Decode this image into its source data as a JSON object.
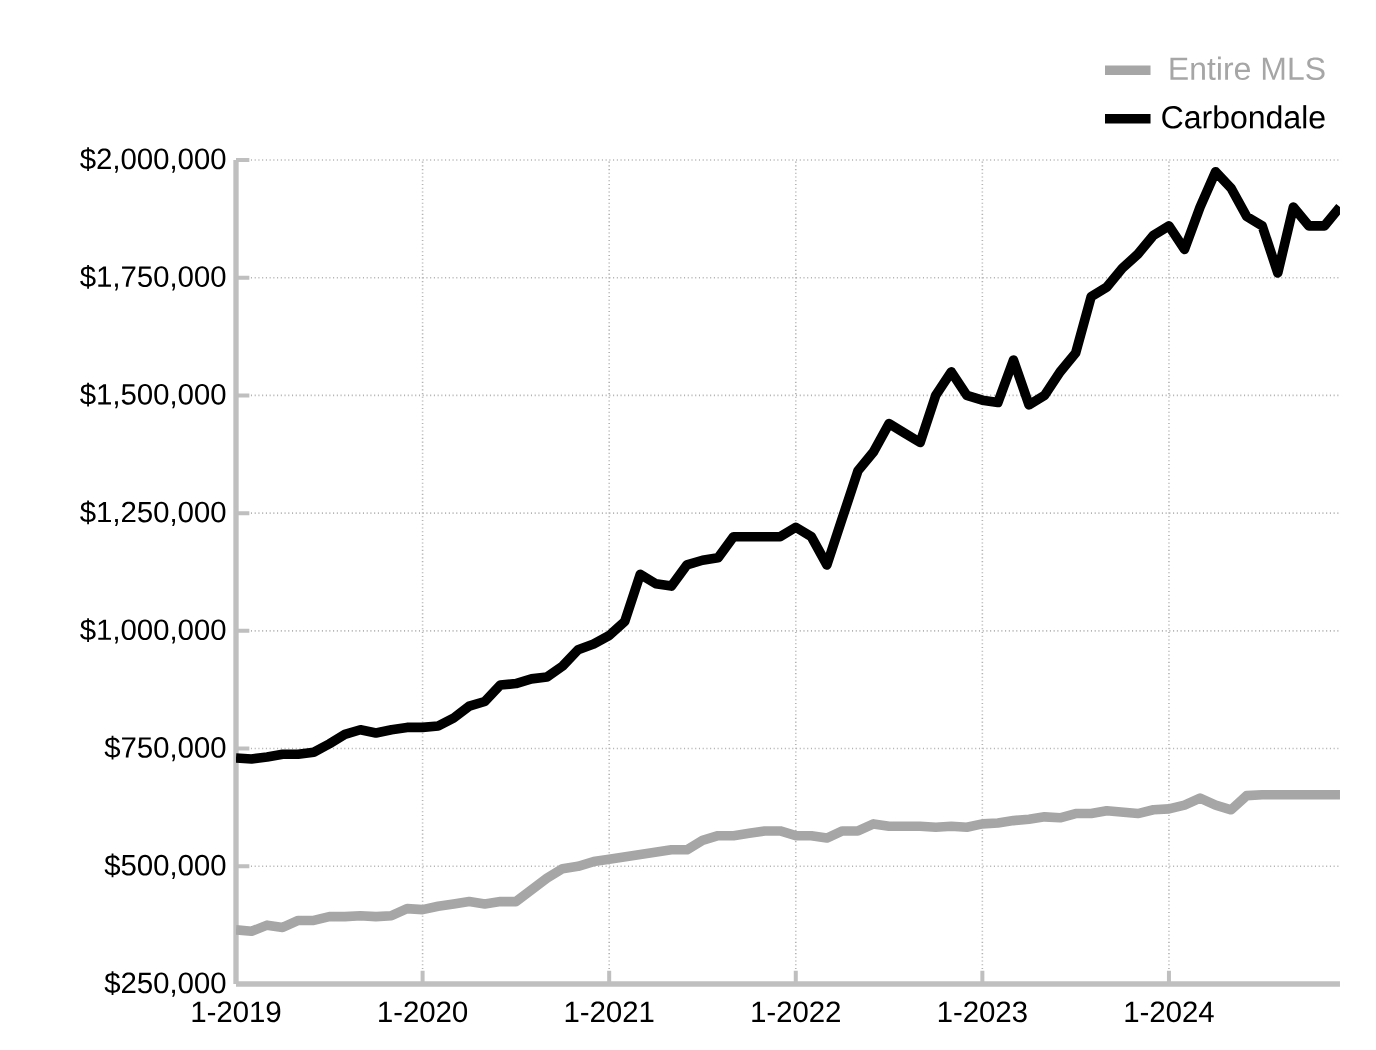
{
  "chart_data": {
    "type": "line",
    "x": [
      "2019-01",
      "2019-02",
      "2019-03",
      "2019-04",
      "2019-05",
      "2019-06",
      "2019-07",
      "2019-08",
      "2019-09",
      "2019-10",
      "2019-11",
      "2019-12",
      "2020-01",
      "2020-02",
      "2020-03",
      "2020-04",
      "2020-05",
      "2020-06",
      "2020-07",
      "2020-08",
      "2020-09",
      "2020-10",
      "2020-11",
      "2020-12",
      "2021-01",
      "2021-02",
      "2021-03",
      "2021-04",
      "2021-05",
      "2021-06",
      "2021-07",
      "2021-08",
      "2021-09",
      "2021-10",
      "2021-11",
      "2021-12",
      "2022-01",
      "2022-02",
      "2022-03",
      "2022-04",
      "2022-05",
      "2022-06",
      "2022-07",
      "2022-08",
      "2022-09",
      "2022-10",
      "2022-11",
      "2022-12",
      "2023-01",
      "2023-02",
      "2023-03",
      "2023-04",
      "2023-05",
      "2023-06",
      "2023-07",
      "2023-08",
      "2023-09",
      "2023-10",
      "2023-11",
      "2023-12",
      "2024-01",
      "2024-02",
      "2024-03",
      "2024-04",
      "2024-05",
      "2024-06",
      "2024-07",
      "2024-08",
      "2024-09",
      "2024-10",
      "2024-11",
      "2024-12"
    ],
    "series": [
      {
        "name": "Entire MLS",
        "color": "#a6a6a6",
        "values": [
          365000,
          362000,
          375000,
          370000,
          385000,
          385000,
          393000,
          393000,
          395000,
          393000,
          395000,
          410000,
          408000,
          415000,
          420000,
          425000,
          420000,
          425000,
          425000,
          450000,
          475000,
          495000,
          500000,
          510000,
          515000,
          520000,
          525000,
          530000,
          535000,
          535000,
          555000,
          565000,
          565000,
          570000,
          575000,
          575000,
          565000,
          565000,
          560000,
          575000,
          575000,
          590000,
          585000,
          585000,
          585000,
          583000,
          585000,
          583000,
          590000,
          592000,
          597000,
          600000,
          605000,
          603000,
          612000,
          612000,
          618000,
          615000,
          612000,
          620000,
          622000,
          630000,
          645000,
          630000,
          620000,
          650000,
          652000,
          652000,
          652000,
          652000,
          652000,
          652000
        ]
      },
      {
        "name": "Carbondale",
        "color": "#000000",
        "values": [
          730000,
          728000,
          732000,
          738000,
          738000,
          742000,
          760000,
          780000,
          790000,
          783000,
          790000,
          795000,
          795000,
          798000,
          815000,
          840000,
          850000,
          885000,
          888000,
          898000,
          902000,
          925000,
          960000,
          972000,
          990000,
          1020000,
          1120000,
          1100000,
          1095000,
          1140000,
          1150000,
          1155000,
          1200000,
          1200000,
          1200000,
          1200000,
          1220000,
          1200000,
          1140000,
          1240000,
          1340000,
          1380000,
          1440000,
          1420000,
          1400000,
          1500000,
          1550000,
          1500000,
          1490000,
          1485000,
          1575000,
          1480000,
          1500000,
          1550000,
          1590000,
          1710000,
          1730000,
          1770000,
          1800000,
          1840000,
          1860000,
          1810000,
          1900000,
          1975000,
          1940000,
          1880000,
          1860000,
          1760000,
          1900000,
          1860000,
          1860000,
          1900000
        ]
      }
    ],
    "xlim": [
      "2019-01",
      "2024-12"
    ],
    "xticks": [
      {
        "value": "2019-01",
        "label": "1-2019"
      },
      {
        "value": "2020-01",
        "label": "1-2020"
      },
      {
        "value": "2021-01",
        "label": "1-2021"
      },
      {
        "value": "2022-01",
        "label": "1-2022"
      },
      {
        "value": "2023-01",
        "label": "1-2023"
      },
      {
        "value": "2024-01",
        "label": "1-2024"
      }
    ],
    "ylim": [
      250000,
      2000000
    ],
    "yticks": [
      {
        "value": 250000,
        "label": "$250,000"
      },
      {
        "value": 500000,
        "label": "$500,000"
      },
      {
        "value": 750000,
        "label": "$750,000"
      },
      {
        "value": 1000000,
        "label": "$1,000,000"
      },
      {
        "value": 1250000,
        "label": "$1,250,000"
      },
      {
        "value": 1500000,
        "label": "$1,500,000"
      },
      {
        "value": 1750000,
        "label": "$1,750,000"
      },
      {
        "value": 2000000,
        "label": "$2,000,000"
      }
    ],
    "grid": true,
    "legend": "top right",
    "line_style": "solid",
    "marker": "none"
  }
}
